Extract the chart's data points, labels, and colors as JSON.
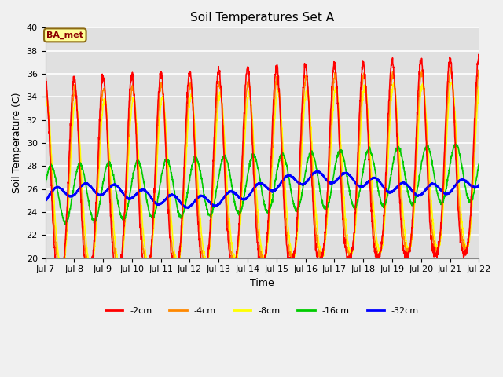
{
  "title": "Soil Temperatures Set A",
  "xlabel": "Time",
  "ylabel": "Soil Temperature (C)",
  "ylim": [
    20,
    40
  ],
  "xlim_days": [
    7,
    22
  ],
  "xtick_labels": [
    "Jul 7",
    "Jul 8",
    "Jul 9",
    "Jul 10",
    "Jul 11",
    "Jul 12",
    "Jul 13",
    "Jul 14",
    "Jul 15",
    "Jul 16",
    "Jul 17",
    "Jul 18",
    "Jul 19",
    "Jul 20",
    "Jul 21",
    "Jul 22"
  ],
  "legend_labels": [
    "-2cm",
    "-4cm",
    "-8cm",
    "-16cm",
    "-32cm"
  ],
  "legend_colors": [
    "#ff0000",
    "#ff8800",
    "#ffff00",
    "#00cc00",
    "#0000ff"
  ],
  "line_widths": [
    1.2,
    1.2,
    1.2,
    1.2,
    1.8
  ],
  "annotation_text": "BA_met",
  "fig_bg": "#f0f0f0",
  "ax_bg": "#e0e0e0",
  "title_fontsize": 11,
  "label_fontsize": 9,
  "tick_fontsize": 8
}
